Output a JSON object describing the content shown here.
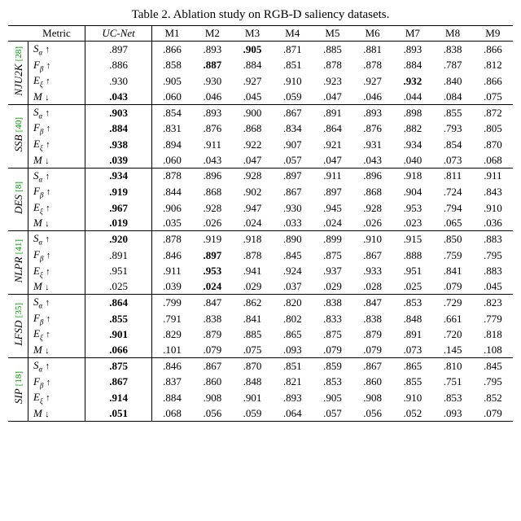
{
  "caption": "Table 2. Ablation study on RGB-D saliency datasets.",
  "columns": [
    "Metric",
    "UC-Net",
    "M1",
    "M2",
    "M3",
    "M4",
    "M5",
    "M6",
    "M7",
    "M8",
    "M9"
  ],
  "metrics": [
    {
      "symbol": "S",
      "sub": "α",
      "dir": "↑",
      "key": "S"
    },
    {
      "symbol": "F",
      "sub": "β",
      "dir": "↑",
      "key": "F"
    },
    {
      "symbol": "E",
      "sub": "ξ",
      "dir": "↑",
      "key": "E"
    },
    {
      "symbol": "M",
      "sub": "",
      "dir": "↓",
      "key": "M",
      "cal": true
    }
  ],
  "datasets": [
    {
      "name": "NJU2K",
      "cite": "28",
      "rows": {
        "S": [
          ".897",
          ".866",
          ".893",
          ".905",
          ".871",
          ".885",
          ".881",
          ".893",
          ".838",
          ".866"
        ],
        "F": [
          ".886",
          ".858",
          ".887",
          ".884",
          ".851",
          ".878",
          ".878",
          ".884",
          ".787",
          ".812"
        ],
        "E": [
          ".930",
          ".905",
          ".930",
          ".927",
          ".910",
          ".923",
          ".927",
          ".932",
          ".840",
          ".866"
        ],
        "M": [
          ".043",
          ".060",
          ".046",
          ".045",
          ".059",
          ".047",
          ".046",
          ".044",
          ".084",
          ".075"
        ]
      },
      "bold": {
        "S": 3,
        "F": 2,
        "E": 7,
        "M": 0
      }
    },
    {
      "name": "SSB",
      "cite": "40",
      "rows": {
        "S": [
          ".903",
          ".854",
          ".893",
          ".900",
          ".867",
          ".891",
          ".893",
          ".898",
          ".855",
          ".872"
        ],
        "F": [
          ".884",
          ".831",
          ".876",
          ".868",
          ".834",
          ".864",
          ".876",
          ".882",
          ".793",
          ".805"
        ],
        "E": [
          ".938",
          ".894",
          ".911",
          ".922",
          ".907",
          ".921",
          ".931",
          ".934",
          ".854",
          ".870"
        ],
        "M": [
          ".039",
          ".060",
          ".043",
          ".047",
          ".057",
          ".047",
          ".043",
          ".040",
          ".073",
          ".068"
        ]
      },
      "bold": {
        "S": 0,
        "F": 0,
        "E": 0,
        "M": 0
      }
    },
    {
      "name": "DES",
      "cite": "8",
      "rows": {
        "S": [
          ".934",
          ".878",
          ".896",
          ".928",
          ".897",
          ".911",
          ".896",
          ".918",
          ".811",
          ".911"
        ],
        "F": [
          ".919",
          ".844",
          ".868",
          ".902",
          ".867",
          ".897",
          ".868",
          ".904",
          ".724",
          ".843"
        ],
        "E": [
          ".967",
          ".906",
          ".928",
          ".947",
          ".930",
          ".945",
          ".928",
          ".953",
          ".794",
          ".910"
        ],
        "M": [
          ".019",
          ".035",
          ".026",
          ".024",
          ".033",
          ".024",
          ".026",
          ".023",
          ".065",
          ".036"
        ]
      },
      "bold": {
        "S": 0,
        "F": 0,
        "E": 0,
        "M": 0
      }
    },
    {
      "name": "NLPR",
      "cite": "41",
      "rows": {
        "S": [
          ".920",
          ".878",
          ".919",
          ".918",
          ".890",
          ".899",
          ".910",
          ".915",
          ".850",
          ".883"
        ],
        "F": [
          ".891",
          ".846",
          ".897",
          ".878",
          ".845",
          ".875",
          ".867",
          ".888",
          ".759",
          ".795"
        ],
        "E": [
          ".951",
          ".911",
          ".953",
          ".941",
          ".924",
          ".937",
          ".933",
          ".951",
          ".841",
          ".883"
        ],
        "M": [
          ".025",
          ".039",
          ".024",
          ".029",
          ".037",
          ".029",
          ".028",
          ".025",
          ".079",
          ".045"
        ]
      },
      "bold": {
        "S": 0,
        "F": 2,
        "E": 2,
        "M": 2
      }
    },
    {
      "name": "LFSD",
      "cite": "35",
      "rows": {
        "S": [
          ".864",
          ".799",
          ".847",
          ".862",
          ".820",
          ".838",
          ".847",
          ".853",
          ".729",
          ".823"
        ],
        "F": [
          ".855",
          ".791",
          ".838",
          ".841",
          ".802",
          ".833",
          ".838",
          ".848",
          ".661",
          ".779"
        ],
        "E": [
          ".901",
          ".829",
          ".879",
          ".885",
          ".865",
          ".875",
          ".879",
          ".891",
          ".720",
          ".818"
        ],
        "M": [
          ".066",
          ".101",
          ".079",
          ".075",
          ".093",
          ".079",
          ".079",
          ".073",
          ".145",
          ".108"
        ]
      },
      "bold": {
        "S": 0,
        "F": 0,
        "E": 0,
        "M": 0
      }
    },
    {
      "name": "SIP",
      "cite": "18",
      "rows": {
        "S": [
          ".875",
          ".846",
          ".867",
          ".870",
          ".851",
          ".859",
          ".867",
          ".865",
          ".810",
          ".845"
        ],
        "F": [
          ".867",
          ".837",
          ".860",
          ".848",
          ".821",
          ".853",
          ".860",
          ".855",
          ".751",
          ".795"
        ],
        "E": [
          ".914",
          ".884",
          ".908",
          ".901",
          ".893",
          ".905",
          ".908",
          ".910",
          ".853",
          ".852"
        ],
        "M": [
          ".051",
          ".068",
          ".056",
          ".059",
          ".064",
          ".057",
          ".056",
          ".052",
          ".093",
          ".079"
        ]
      },
      "bold": {
        "S": 0,
        "F": 0,
        "E": 0,
        "M": 0
      }
    }
  ]
}
